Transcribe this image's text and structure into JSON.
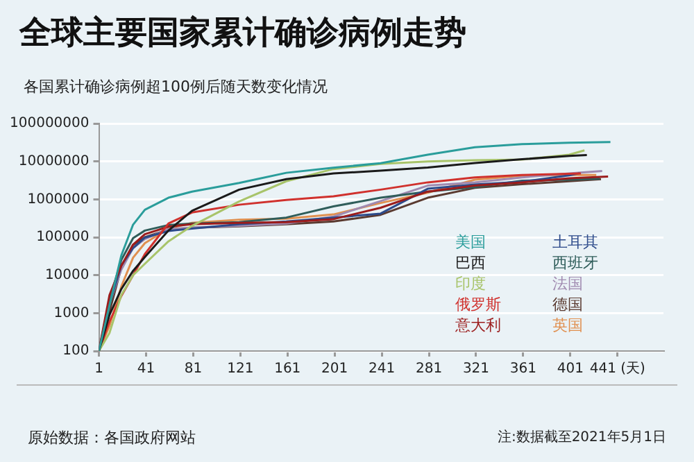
{
  "chart_data": {
    "type": "line",
    "title": "全球主要国家累计确诊病例走势",
    "subtitle": "各国累计确诊病例超100例后随天数变化情况",
    "annotations": [
      "原始数据：各国政府网站",
      "注:数据截至2021年5月1日"
    ],
    "log": "y",
    "grid": "y",
    "legend": false,
    "marker": "none",
    "line_style": "solid",
    "xlim": [
      1,
      480
    ],
    "xticks": [
      1,
      41,
      81,
      121,
      161,
      201,
      241,
      281,
      321,
      361,
      401,
      {
        "value": 441,
        "label": "441 (天)"
      }
    ],
    "ylim": [
      100,
      100000000
    ],
    "yticks": [
      100,
      1000,
      10000,
      100000,
      1000000,
      10000000,
      100000000
    ],
    "series": [
      {
        "name": "美国",
        "color": "#2a9d9b",
        "x": [
          1,
          10,
          20,
          30,
          40,
          60,
          80,
          120,
          160,
          200,
          240,
          280,
          320,
          360,
          400,
          435
        ],
        "values": [
          100,
          1600,
          33000,
          215000,
          530000,
          1100000,
          1600000,
          2700000,
          5000000,
          6800000,
          9000000,
          15000000,
          23700000,
          28600000,
          31000000,
          32400000
        ]
      },
      {
        "name": "巴西",
        "color": "#1a1a1a",
        "x": [
          1,
          10,
          20,
          30,
          40,
          60,
          80,
          120,
          160,
          200,
          240,
          280,
          320,
          360,
          400,
          415
        ],
        "values": [
          100,
          900,
          4300,
          13000,
          30000,
          150000,
          500000,
          1800000,
          3400000,
          4800000,
          5700000,
          6900000,
          9100000,
          11400000,
          13900000,
          14700000
        ]
      },
      {
        "name": "印度",
        "color": "#a8c46a",
        "x": [
          1,
          10,
          20,
          30,
          40,
          60,
          80,
          120,
          160,
          200,
          240,
          280,
          320,
          360,
          400,
          413
        ],
        "values": [
          100,
          300,
          3000,
          10000,
          20000,
          78000,
          200000,
          880000,
          3000000,
          6300000,
          8600000,
          10000000,
          10700000,
          11200000,
          15000000,
          19500000
        ]
      },
      {
        "name": "俄罗斯",
        "color": "#d0312d",
        "x": [
          1,
          10,
          20,
          30,
          40,
          60,
          80,
          120,
          160,
          200,
          240,
          280,
          320,
          360,
          400,
          410
        ],
        "values": [
          100,
          600,
          2800,
          10000,
          36000,
          230000,
          450000,
          720000,
          960000,
          1200000,
          1800000,
          2800000,
          3800000,
          4400000,
          4700000,
          4800000
        ]
      },
      {
        "name": "意大利",
        "color": "#9b1c1c",
        "x": [
          1,
          10,
          20,
          30,
          40,
          60,
          80,
          120,
          160,
          200,
          240,
          280,
          320,
          360,
          400,
          433
        ],
        "values": [
          100,
          3000,
          17700,
          64000,
          120000,
          190000,
          220000,
          240000,
          250000,
          300000,
          600000,
          1600000,
          2300000,
          2800000,
          3600000,
          4000000
        ]
      },
      {
        "name": "土耳其",
        "color": "#2c4a8a",
        "x": [
          1,
          10,
          20,
          30,
          40,
          60,
          80,
          120,
          160,
          200,
          240,
          280,
          320,
          360,
          400,
          409
        ],
        "values": [
          100,
          1800,
          18000,
          52000,
          98000,
          146000,
          170000,
          220000,
          260000,
          330000,
          420000,
          1900000,
          2450000,
          2900000,
          4300000,
          4900000
        ]
      },
      {
        "name": "西班牙",
        "color": "#2f5d5a",
        "x": [
          1,
          10,
          20,
          30,
          40,
          60,
          80,
          120,
          160,
          200,
          240,
          280,
          320,
          360,
          400,
          426
        ],
        "values": [
          100,
          2300,
          25000,
          95000,
          150000,
          210000,
          230000,
          250000,
          330000,
          650000,
          1100000,
          1600000,
          2100000,
          3100000,
          3300000,
          3500000
        ]
      },
      {
        "name": "法国",
        "color": "#a08ab0",
        "x": [
          1,
          10,
          20,
          30,
          40,
          60,
          80,
          120,
          160,
          200,
          240,
          280,
          320,
          360,
          400,
          428
        ],
        "values": [
          100,
          1800,
          14000,
          52000,
          90000,
          165000,
          180000,
          200000,
          230000,
          350000,
          900000,
          2300000,
          2800000,
          3800000,
          4800000,
          5600000
        ]
      },
      {
        "name": "德国",
        "color": "#5a3a30",
        "x": [
          1,
          10,
          20,
          30,
          40,
          60,
          80,
          120,
          160,
          200,
          240,
          280,
          320,
          360,
          400,
          427
        ],
        "values": [
          100,
          1100,
          16000,
          63000,
          100000,
          160000,
          178000,
          195000,
          220000,
          260000,
          390000,
          1100000,
          2000000,
          2500000,
          3000000,
          3400000
        ]
      },
      {
        "name": "英国",
        "color": "#e09050",
        "x": [
          1,
          10,
          20,
          30,
          40,
          60,
          80,
          120,
          160,
          200,
          240,
          280,
          320,
          360,
          400,
          423
        ],
        "values": [
          100,
          460,
          5000,
          29000,
          70000,
          170000,
          240000,
          290000,
          310000,
          400000,
          800000,
          1500000,
          3300000,
          4200000,
          4370000,
          4400000
        ]
      }
    ]
  }
}
